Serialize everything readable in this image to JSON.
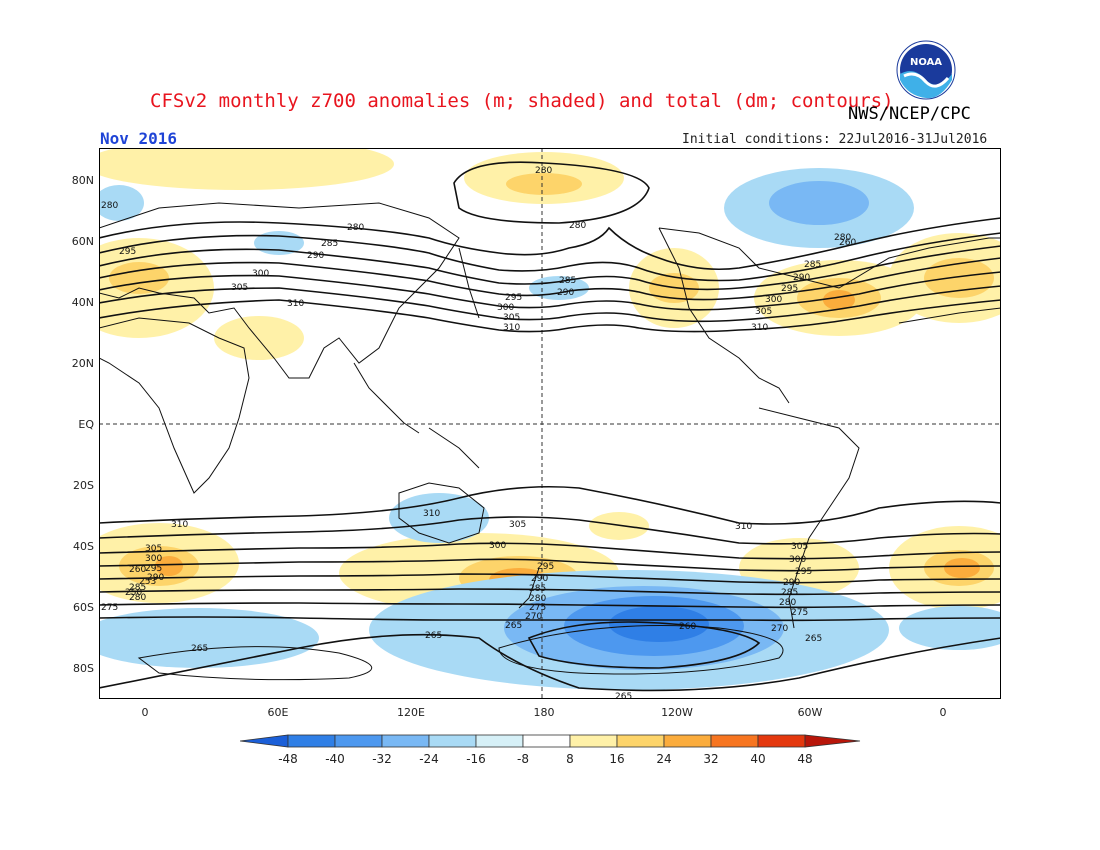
{
  "header": {
    "title": "CFSv2 monthly z700 anomalies (m; shaded) and total (dm; contours)",
    "org": "NWS/NCEP/CPC",
    "month": "Nov 2016",
    "initial_conditions": "Initial conditions: 22Jul2016-31Jul2016",
    "logo_text": "NOAA"
  },
  "axes": {
    "lat_labels": [
      "80N",
      "60N",
      "40N",
      "20N",
      "EQ",
      "20S",
      "40S",
      "60S",
      "80S"
    ],
    "lon_labels": [
      "0",
      "60E",
      "120E",
      "180",
      "120W",
      "60W",
      "0"
    ]
  },
  "contour_labels": [
    "280",
    "280",
    "280",
    "280",
    "280",
    "285",
    "285",
    "285",
    "290",
    "290",
    "290",
    "295",
    "295",
    "295",
    "300",
    "300",
    "300",
    "305",
    "305",
    "305",
    "310",
    "310",
    "310",
    "310",
    "310",
    "310",
    "305",
    "305",
    "305",
    "300",
    "300",
    "300",
    "295",
    "295",
    "295",
    "290",
    "290",
    "290",
    "285",
    "285",
    "285",
    "280",
    "280",
    "280",
    "275",
    "275",
    "275",
    "270",
    "270",
    "265",
    "265",
    "265",
    "265",
    "260",
    "260",
    "260",
    "253",
    "250",
    "265"
  ],
  "colorbar": {
    "labels": [
      "-48",
      "-40",
      "-32",
      "-24",
      "-16",
      "-8",
      "8",
      "16",
      "24",
      "32",
      "40",
      "48"
    ],
    "colors": [
      "#1b5fd8",
      "#2f7fe6",
      "#4d98ef",
      "#79b8f4",
      "#a9daf5",
      "#ffffff",
      "#fff1a8",
      "#fdd46a",
      "#fbac3c",
      "#f77520",
      "#e4380e",
      "#b8160a"
    ]
  },
  "colors": {
    "title": "#e8141e",
    "month": "#1f44d6"
  }
}
